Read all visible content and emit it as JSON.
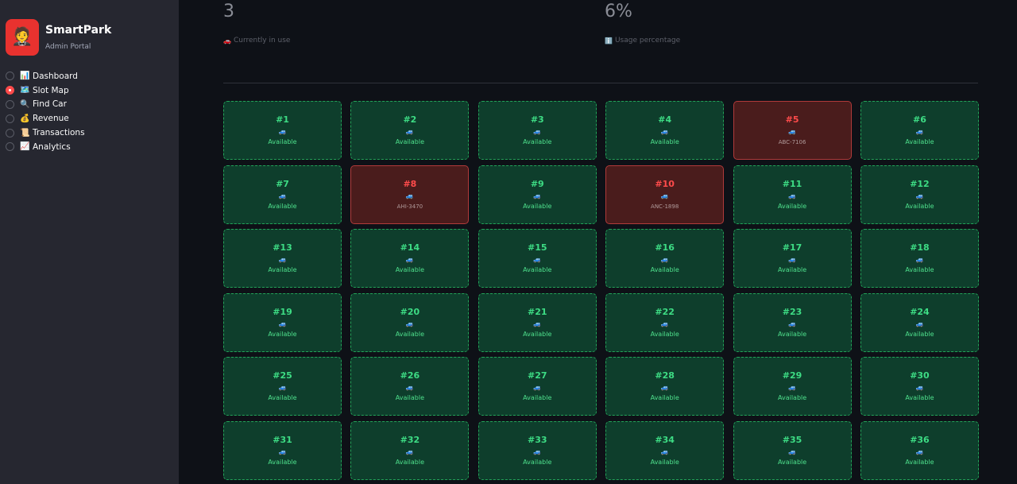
{
  "app": {
    "title": "SmartPark",
    "subtitle": "Admin Portal",
    "logo_icon": "🤵"
  },
  "nav": {
    "selected_index": 1,
    "items": [
      {
        "icon": "📊",
        "label": "Dashboard"
      },
      {
        "icon": "🗺️",
        "label": "Slot Map"
      },
      {
        "icon": "🔍",
        "label": "Find Car"
      },
      {
        "icon": "💰",
        "label": "Revenue"
      },
      {
        "icon": "📜",
        "label": "Transactions"
      },
      {
        "icon": "📈",
        "label": "Analytics"
      }
    ]
  },
  "metrics": [
    {
      "value": "3",
      "icon": "🚗",
      "caption": "Currently in use"
    },
    {
      "value": "6%",
      "icon": "ℹ️",
      "caption": "Usage percentage"
    }
  ],
  "colors": {
    "accent": "#ff4b4b",
    "available_bg": "#0e3e2c",
    "available_text": "#3ddc84",
    "occupied_bg": "#4a1c1c",
    "occupied_text": "#ff4b4b"
  },
  "slot_icon": "🚙",
  "available_label": "Available",
  "slots": [
    {
      "num": "#1",
      "occupied": false,
      "status": "Available"
    },
    {
      "num": "#2",
      "occupied": false,
      "status": "Available"
    },
    {
      "num": "#3",
      "occupied": false,
      "status": "Available"
    },
    {
      "num": "#4",
      "occupied": false,
      "status": "Available"
    },
    {
      "num": "#5",
      "occupied": true,
      "status": "ABC-7106"
    },
    {
      "num": "#6",
      "occupied": false,
      "status": "Available"
    },
    {
      "num": "#7",
      "occupied": false,
      "status": "Available"
    },
    {
      "num": "#8",
      "occupied": true,
      "status": "AHI-3470"
    },
    {
      "num": "#9",
      "occupied": false,
      "status": "Available"
    },
    {
      "num": "#10",
      "occupied": true,
      "status": "ANC-1898"
    },
    {
      "num": "#11",
      "occupied": false,
      "status": "Available"
    },
    {
      "num": "#12",
      "occupied": false,
      "status": "Available"
    },
    {
      "num": "#13",
      "occupied": false,
      "status": "Available"
    },
    {
      "num": "#14",
      "occupied": false,
      "status": "Available"
    },
    {
      "num": "#15",
      "occupied": false,
      "status": "Available"
    },
    {
      "num": "#16",
      "occupied": false,
      "status": "Available"
    },
    {
      "num": "#17",
      "occupied": false,
      "status": "Available"
    },
    {
      "num": "#18",
      "occupied": false,
      "status": "Available"
    },
    {
      "num": "#19",
      "occupied": false,
      "status": "Available"
    },
    {
      "num": "#20",
      "occupied": false,
      "status": "Available"
    },
    {
      "num": "#21",
      "occupied": false,
      "status": "Available"
    },
    {
      "num": "#22",
      "occupied": false,
      "status": "Available"
    },
    {
      "num": "#23",
      "occupied": false,
      "status": "Available"
    },
    {
      "num": "#24",
      "occupied": false,
      "status": "Available"
    },
    {
      "num": "#25",
      "occupied": false,
      "status": "Available"
    },
    {
      "num": "#26",
      "occupied": false,
      "status": "Available"
    },
    {
      "num": "#27",
      "occupied": false,
      "status": "Available"
    },
    {
      "num": "#28",
      "occupied": false,
      "status": "Available"
    },
    {
      "num": "#29",
      "occupied": false,
      "status": "Available"
    },
    {
      "num": "#30",
      "occupied": false,
      "status": "Available"
    },
    {
      "num": "#31",
      "occupied": false,
      "status": "Available"
    },
    {
      "num": "#32",
      "occupied": false,
      "status": "Available"
    },
    {
      "num": "#33",
      "occupied": false,
      "status": "Available"
    },
    {
      "num": "#34",
      "occupied": false,
      "status": "Available"
    },
    {
      "num": "#35",
      "occupied": false,
      "status": "Available"
    },
    {
      "num": "#36",
      "occupied": false,
      "status": "Available"
    }
  ]
}
